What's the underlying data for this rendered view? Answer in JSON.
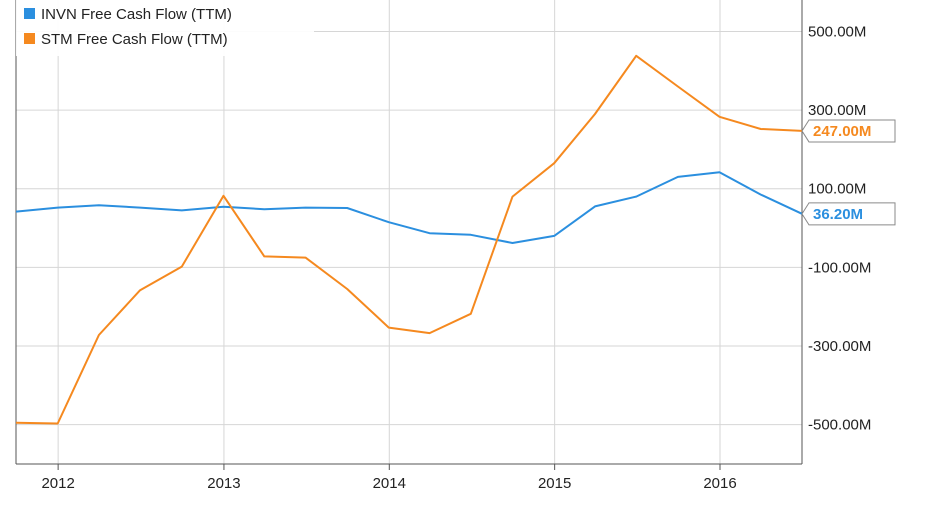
{
  "chart_data": {
    "type": "line",
    "title": "",
    "xlabel": "",
    "ylabel": "",
    "x_ticks": [
      "2012",
      "2013",
      "2014",
      "2015",
      "2016"
    ],
    "y_ticks": [
      "500.00M",
      "300.00M",
      "100.00M",
      "-100.00M",
      "-300.00M",
      "-500.00M"
    ],
    "y_tick_values": [
      500,
      300,
      100,
      -100,
      -300,
      -500
    ],
    "ylim": [
      -600,
      580
    ],
    "xlim": [
      "2011-09-30",
      "2016-06-30"
    ],
    "grid": true,
    "legend_position": "top-left",
    "units": "M",
    "series": [
      {
        "name": "INVN Free Cash Flow (TTM)",
        "color": "#2b8fdf",
        "end_label": "36.20M",
        "points": [
          {
            "x": "2011-09-30",
            "y": 42
          },
          {
            "x": "2011-12-31",
            "y": 52
          },
          {
            "x": "2012-03-31",
            "y": 58
          },
          {
            "x": "2012-06-30",
            "y": 52
          },
          {
            "x": "2012-09-30",
            "y": 45
          },
          {
            "x": "2012-12-31",
            "y": 54
          },
          {
            "x": "2013-03-31",
            "y": 48
          },
          {
            "x": "2013-06-30",
            "y": 52
          },
          {
            "x": "2013-09-30",
            "y": 51
          },
          {
            "x": "2013-12-31",
            "y": 15
          },
          {
            "x": "2014-03-31",
            "y": -13
          },
          {
            "x": "2014-06-30",
            "y": -17
          },
          {
            "x": "2014-09-30",
            "y": -38
          },
          {
            "x": "2014-12-31",
            "y": -20
          },
          {
            "x": "2015-03-31",
            "y": 55
          },
          {
            "x": "2015-06-30",
            "y": 80
          },
          {
            "x": "2015-09-30",
            "y": 130
          },
          {
            "x": "2015-12-31",
            "y": 142
          },
          {
            "x": "2016-03-31",
            "y": 85
          },
          {
            "x": "2016-06-30",
            "y": 36.2
          }
        ]
      },
      {
        "name": "STM Free Cash Flow (TTM)",
        "color": "#f5891f",
        "end_label": "247.00M",
        "points": [
          {
            "x": "2011-09-30",
            "y": -495
          },
          {
            "x": "2011-12-31",
            "y": -497
          },
          {
            "x": "2012-03-31",
            "y": -272
          },
          {
            "x": "2012-06-30",
            "y": -158
          },
          {
            "x": "2012-09-30",
            "y": -98
          },
          {
            "x": "2012-12-31",
            "y": 82
          },
          {
            "x": "2013-03-31",
            "y": -72
          },
          {
            "x": "2013-06-30",
            "y": -75
          },
          {
            "x": "2013-09-30",
            "y": -155
          },
          {
            "x": "2013-12-31",
            "y": -253
          },
          {
            "x": "2014-03-31",
            "y": -267
          },
          {
            "x": "2014-06-30",
            "y": -218
          },
          {
            "x": "2014-09-30",
            "y": 80
          },
          {
            "x": "2014-12-31",
            "y": 165
          },
          {
            "x": "2015-03-31",
            "y": 290
          },
          {
            "x": "2015-06-30",
            "y": 438
          },
          {
            "x": "2015-09-30",
            "y": 360
          },
          {
            "x": "2015-12-31",
            "y": 283
          },
          {
            "x": "2016-03-31",
            "y": 252
          },
          {
            "x": "2016-06-30",
            "y": 247
          }
        ]
      }
    ]
  }
}
